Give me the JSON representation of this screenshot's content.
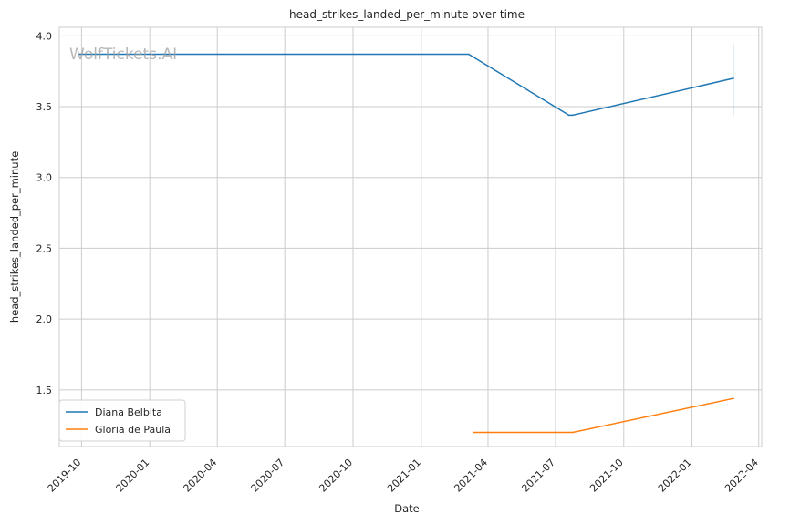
{
  "chart_data": {
    "type": "line",
    "title": "head_strikes_landed_per_minute over time",
    "xlabel": "Date",
    "ylabel": "head_strikes_landed_per_minute",
    "watermark": "WolfTickets.AI",
    "x_ticks": [
      "2019-10",
      "2020-01",
      "2020-04",
      "2020-07",
      "2020-10",
      "2021-01",
      "2021-04",
      "2021-07",
      "2021-10",
      "2022-01",
      "2022-04"
    ],
    "y_ticks": [
      "1.5",
      "2.0",
      "2.5",
      "3.0",
      "3.5",
      "4.0"
    ],
    "xlim": [
      "2019-09-01",
      "2022-04-05"
    ],
    "ylim": [
      1.1,
      4.06
    ],
    "grid": true,
    "legend_position": "lower-left",
    "series": [
      {
        "name": "Diana Belbita",
        "color": "#1f77b4",
        "points": [
          {
            "x": "2019-09-28",
            "y": 3.87
          },
          {
            "x": "2021-03-06",
            "y": 3.87
          },
          {
            "x": "2021-07-19",
            "y": 3.44
          },
          {
            "x": "2021-07-24",
            "y": 3.44
          },
          {
            "x": "2022-02-26",
            "y": 3.7
          }
        ]
      },
      {
        "name": "Gloria de Paula",
        "color": "#ff7f0e",
        "points": [
          {
            "x": "2021-03-13",
            "y": 1.2
          },
          {
            "x": "2021-07-24",
            "y": 1.2
          },
          {
            "x": "2022-02-26",
            "y": 1.44
          }
        ]
      }
    ]
  }
}
